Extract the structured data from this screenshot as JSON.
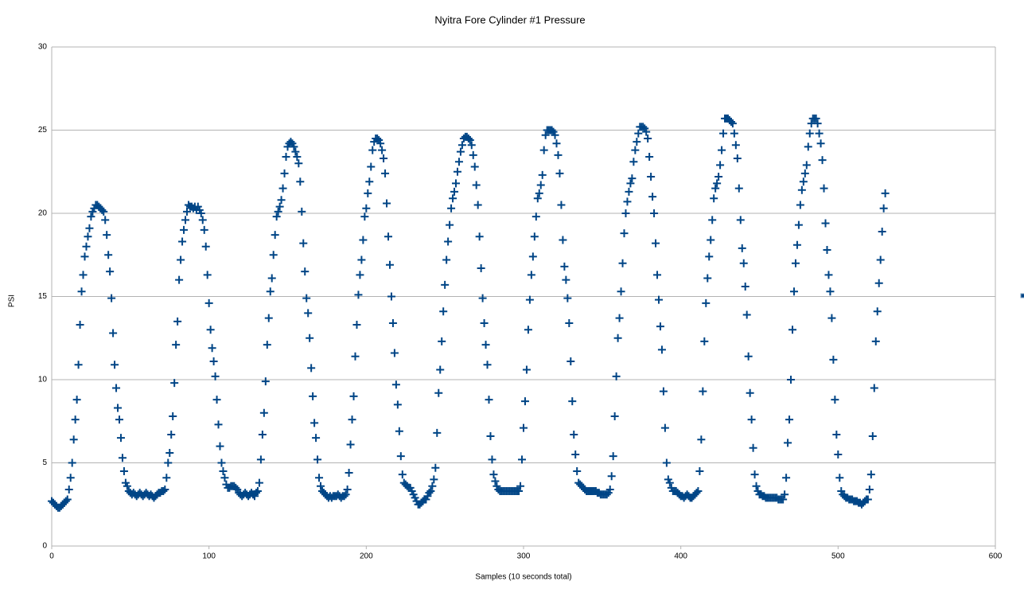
{
  "chart_data": {
    "type": "scatter",
    "title": "Nyitra Fore Cylinder #1 Pressure",
    "x_label": "Samples (10 seconds total)",
    "y_label": "PSI",
    "color": "#004586",
    "grid": true,
    "xlim": [
      0,
      600
    ],
    "xticks": [
      0,
      100,
      200,
      300,
      400,
      500,
      600
    ],
    "ylim": [
      0,
      30
    ],
    "yticks": [
      0,
      5,
      10,
      15,
      20,
      25,
      30
    ],
    "x": [
      0,
      1,
      2,
      3,
      4,
      5,
      6,
      7,
      8,
      9,
      10,
      11,
      12,
      13,
      14,
      15,
      16,
      17,
      18,
      19,
      20,
      21,
      22,
      23,
      24,
      25,
      26,
      27,
      28,
      29,
      30,
      31,
      32,
      33,
      34,
      35,
      36,
      37,
      38,
      39,
      40,
      41,
      42,
      43,
      44,
      45,
      46,
      47,
      48,
      49,
      50,
      51,
      52,
      53,
      54,
      55,
      56,
      57,
      58,
      59,
      60,
      61,
      62,
      63,
      64,
      65,
      66,
      67,
      68,
      69,
      70,
      71,
      72,
      73,
      74,
      75,
      76,
      77,
      78,
      79,
      80,
      81,
      82,
      83,
      84,
      85,
      86,
      87,
      88,
      89,
      90,
      91,
      92,
      93,
      94,
      95,
      96,
      97,
      98,
      99,
      100,
      101,
      102,
      103,
      104,
      105,
      106,
      107,
      108,
      109,
      110,
      111,
      112,
      113,
      114,
      115,
      116,
      117,
      118,
      119,
      120,
      121,
      122,
      123,
      124,
      125,
      126,
      127,
      128,
      129,
      130,
      131,
      132,
      133,
      134,
      135,
      136,
      137,
      138,
      139,
      140,
      141,
      142,
      143,
      144,
      145,
      146,
      147,
      148,
      149,
      150,
      151,
      152,
      153,
      154,
      155,
      156,
      157,
      158,
      159,
      160,
      161,
      162,
      163,
      164,
      165,
      166,
      167,
      168,
      169,
      170,
      171,
      172,
      173,
      174,
      175,
      176,
      177,
      178,
      179,
      180,
      181,
      182,
      183,
      184,
      185,
      186,
      187,
      188,
      189,
      190,
      191,
      192,
      193,
      194,
      195,
      196,
      197,
      198,
      199,
      200,
      201,
      202,
      203,
      204,
      205,
      206,
      207,
      208,
      209,
      210,
      211,
      212,
      213,
      214,
      215,
      216,
      217,
      218,
      219,
      220,
      221,
      222,
      223,
      224,
      225,
      226,
      227,
      228,
      229,
      230,
      231,
      232,
      233,
      234,
      235,
      236,
      237,
      238,
      239,
      240,
      241,
      242,
      243,
      244,
      245,
      246,
      247,
      248,
      249,
      250,
      251,
      252,
      253,
      254,
      255,
      256,
      257,
      258,
      259,
      260,
      261,
      262,
      263,
      264,
      265,
      266,
      267,
      268,
      269,
      270,
      271,
      272,
      273,
      274,
      275,
      276,
      277,
      278,
      279,
      280,
      281,
      282,
      283,
      284,
      285,
      286,
      287,
      288,
      289,
      290,
      291,
      292,
      293,
      294,
      295,
      296,
      297,
      298,
      299,
      300,
      301,
      302,
      303,
      304,
      305,
      306,
      307,
      308,
      309,
      310,
      311,
      312,
      313,
      314,
      315,
      316,
      317,
      318,
      319,
      320,
      321,
      322,
      323,
      324,
      325,
      326,
      327,
      328,
      329,
      330,
      331,
      332,
      333,
      334,
      335,
      336,
      337,
      338,
      339,
      340,
      341,
      342,
      343,
      344,
      345,
      346,
      347,
      348,
      349,
      350,
      351,
      352,
      353,
      354,
      355,
      356,
      357,
      358,
      359,
      360,
      361,
      362,
      363,
      364,
      365,
      366,
      367,
      368,
      369,
      370,
      371,
      372,
      373,
      374,
      375,
      376,
      377,
      378,
      379,
      380,
      381,
      382,
      383,
      384,
      385,
      386,
      387,
      388,
      389,
      390,
      391,
      392,
      393,
      394,
      395,
      396,
      397,
      398,
      399,
      400,
      401,
      402,
      403,
      404,
      405,
      406,
      407,
      408,
      409,
      410,
      411,
      412,
      413,
      414,
      415,
      416,
      417,
      418,
      419,
      420,
      421,
      422,
      423,
      424,
      425,
      426,
      427,
      428,
      429,
      430,
      431,
      432,
      433,
      434,
      435,
      436,
      437,
      438,
      439,
      440,
      441,
      442,
      443,
      444,
      445,
      446,
      447,
      448,
      449,
      450,
      451,
      452,
      453,
      454,
      455,
      456,
      457,
      458,
      459,
      460,
      461,
      462,
      463,
      464,
      465,
      466,
      467,
      468,
      469,
      470,
      471,
      472,
      473,
      474,
      475,
      476,
      477,
      478,
      479,
      480,
      481,
      482,
      483,
      484,
      485,
      486,
      487,
      488,
      489,
      490,
      491,
      492,
      493,
      494,
      495,
      496,
      497,
      498,
      499,
      500,
      501,
      502,
      503,
      504,
      505,
      506,
      507,
      508,
      509,
      510,
      511,
      512,
      513,
      514,
      515,
      516,
      517,
      518,
      519,
      520,
      521,
      522,
      523,
      524,
      525,
      526,
      527,
      528,
      529,
      530
    ],
    "values": [
      2.7,
      2.6,
      2.5,
      2.4,
      2.3,
      2.3,
      2.4,
      2.5,
      2.6,
      2.7,
      2.8,
      3.4,
      4.1,
      5.0,
      6.4,
      7.6,
      8.8,
      10.9,
      13.3,
      15.3,
      16.3,
      17.4,
      18.0,
      18.6,
      19.1,
      19.8,
      20.1,
      20.3,
      20.5,
      20.5,
      20.4,
      20.3,
      20.2,
      20.1,
      19.6,
      18.7,
      17.5,
      16.5,
      14.9,
      12.8,
      10.9,
      9.5,
      8.3,
      7.6,
      6.5,
      5.3,
      4.5,
      3.8,
      3.6,
      3.3,
      3.2,
      3.1,
      3.2,
      3.1,
      3.0,
      3.1,
      3.2,
      3.1,
      3.0,
      3.1,
      3.2,
      3.1,
      3.0,
      3.1,
      3.0,
      2.9,
      3.0,
      3.1,
      3.2,
      3.2,
      3.3,
      3.3,
      3.4,
      4.1,
      5.0,
      5.6,
      6.7,
      7.8,
      9.8,
      12.1,
      13.5,
      16.0,
      17.2,
      18.3,
      19.0,
      19.6,
      20.1,
      20.5,
      20.4,
      20.4,
      20.3,
      20.4,
      20.2,
      20.4,
      20.2,
      20.0,
      19.6,
      19.0,
      18.0,
      16.3,
      14.6,
      13.0,
      11.9,
      11.1,
      10.2,
      8.8,
      7.3,
      6.0,
      5.0,
      4.5,
      4.1,
      3.7,
      3.5,
      3.5,
      3.6,
      3.6,
      3.6,
      3.5,
      3.4,
      3.2,
      3.1,
      3.0,
      3.1,
      3.2,
      3.1,
      3.0,
      3.1,
      3.2,
      3.1,
      3.0,
      3.2,
      3.3,
      3.8,
      5.2,
      6.7,
      8.0,
      9.9,
      12.1,
      13.7,
      15.3,
      16.1,
      17.5,
      18.7,
      19.8,
      20.1,
      20.4,
      20.8,
      21.5,
      22.4,
      23.4,
      24.0,
      24.2,
      24.3,
      24.2,
      24.0,
      23.7,
      23.4,
      23.0,
      21.9,
      20.1,
      18.2,
      16.5,
      14.9,
      14.0,
      12.5,
      10.7,
      9.0,
      7.4,
      6.5,
      5.2,
      4.1,
      3.6,
      3.3,
      3.2,
      3.1,
      3.0,
      2.9,
      3.0,
      2.9,
      3.0,
      3.0,
      3.0,
      3.1,
      3.0,
      2.9,
      3.0,
      3.0,
      3.1,
      3.4,
      4.4,
      6.1,
      7.6,
      9.0,
      11.4,
      13.3,
      15.1,
      16.3,
      17.2,
      18.4,
      19.8,
      20.3,
      21.2,
      21.9,
      22.8,
      23.8,
      24.3,
      24.5,
      24.5,
      24.4,
      24.2,
      23.8,
      23.3,
      22.4,
      20.6,
      18.6,
      16.9,
      15.0,
      13.4,
      11.6,
      9.7,
      8.5,
      6.9,
      5.4,
      4.3,
      3.8,
      3.7,
      3.6,
      3.5,
      3.5,
      3.3,
      3.1,
      2.9,
      2.7,
      2.5,
      2.5,
      2.6,
      2.7,
      2.8,
      2.8,
      3.0,
      3.2,
      3.3,
      3.6,
      4.0,
      4.7,
      6.8,
      9.2,
      10.6,
      12.3,
      14.1,
      15.7,
      17.2,
      18.3,
      19.3,
      20.3,
      20.9,
      21.3,
      21.8,
      22.5,
      23.1,
      23.7,
      24.1,
      24.5,
      24.6,
      24.6,
      24.5,
      24.4,
      24.1,
      23.5,
      22.8,
      21.7,
      20.5,
      18.6,
      16.7,
      14.9,
      13.4,
      12.1,
      10.9,
      8.8,
      6.6,
      5.2,
      4.3,
      3.9,
      3.6,
      3.4,
      3.3,
      3.3,
      3.3,
      3.3,
      3.3,
      3.3,
      3.3,
      3.3,
      3.3,
      3.3,
      3.3,
      3.3,
      3.3,
      3.6,
      5.2,
      7.1,
      8.7,
      10.6,
      13.0,
      14.8,
      16.3,
      17.4,
      18.6,
      19.8,
      20.9,
      21.2,
      21.7,
      22.3,
      23.8,
      24.7,
      25.0,
      25.0,
      25.0,
      25.0,
      24.9,
      24.7,
      24.2,
      23.5,
      22.4,
      20.5,
      18.4,
      16.8,
      16.0,
      14.9,
      13.4,
      11.1,
      8.7,
      6.7,
      5.5,
      4.5,
      3.8,
      3.7,
      3.6,
      3.5,
      3.4,
      3.3,
      3.3,
      3.3,
      3.3,
      3.3,
      3.3,
      3.3,
      3.2,
      3.2,
      3.1,
      3.1,
      3.1,
      3.1,
      3.1,
      3.2,
      3.4,
      4.2,
      5.4,
      7.8,
      10.2,
      12.5,
      13.7,
      15.3,
      17.0,
      18.8,
      20.0,
      20.7,
      21.3,
      21.8,
      22.1,
      23.1,
      23.8,
      24.3,
      24.8,
      25.2,
      25.2,
      25.2,
      25.1,
      24.9,
      24.5,
      23.4,
      22.2,
      21.0,
      20.0,
      18.2,
      16.3,
      14.8,
      13.2,
      11.8,
      9.3,
      7.1,
      5.0,
      4.0,
      3.8,
      3.5,
      3.3,
      3.3,
      3.3,
      3.2,
      3.1,
      3.0,
      3.0,
      2.9,
      3.0,
      3.1,
      3.0,
      2.9,
      2.9,
      3.0,
      3.1,
      3.2,
      3.3,
      4.5,
      6.4,
      9.3,
      12.3,
      14.6,
      16.1,
      17.4,
      18.4,
      19.6,
      20.9,
      21.5,
      21.8,
      22.2,
      22.9,
      23.8,
      24.8,
      25.7,
      25.7,
      25.7,
      25.6,
      25.5,
      25.4,
      24.8,
      24.1,
      23.3,
      21.5,
      19.6,
      17.9,
      17.0,
      15.6,
      13.9,
      11.4,
      9.2,
      7.6,
      5.9,
      4.3,
      3.6,
      3.3,
      3.1,
      3.1,
      3.0,
      3.0,
      2.9,
      2.9,
      2.9,
      2.9,
      2.9,
      2.9,
      2.9,
      2.9,
      2.8,
      2.8,
      2.8,
      2.8,
      3.1,
      4.1,
      6.2,
      7.6,
      10.0,
      13.0,
      15.3,
      17.0,
      18.1,
      19.3,
      20.5,
      21.4,
      21.9,
      22.4,
      22.9,
      24.0,
      24.8,
      25.4,
      25.7,
      25.7,
      25.7,
      25.4,
      24.8,
      24.2,
      23.2,
      21.5,
      19.4,
      17.8,
      16.3,
      15.3,
      13.7,
      11.2,
      8.8,
      6.7,
      5.5,
      4.1,
      3.3,
      3.1,
      3.0,
      2.9,
      2.9,
      2.8,
      2.8,
      2.8,
      2.7,
      2.7,
      2.7,
      2.6,
      2.6,
      2.5,
      2.6,
      2.7,
      2.8,
      2.8,
      3.4,
      4.3,
      6.6,
      9.5,
      12.3,
      14.1,
      15.8,
      17.2,
      18.9,
      20.3,
      21.2
    ]
  }
}
